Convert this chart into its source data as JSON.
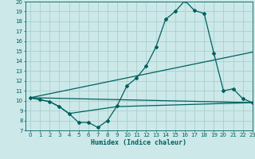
{
  "xlabel": "Humidex (Indice chaleur)",
  "xlim": [
    -0.5,
    23
  ],
  "ylim": [
    7,
    20
  ],
  "xticks": [
    0,
    1,
    2,
    3,
    4,
    5,
    6,
    7,
    8,
    9,
    10,
    11,
    12,
    13,
    14,
    15,
    16,
    17,
    18,
    19,
    20,
    21,
    22,
    23
  ],
  "yticks": [
    7,
    8,
    9,
    10,
    11,
    12,
    13,
    14,
    15,
    16,
    17,
    18,
    19,
    20
  ],
  "background_color": "#cce8e8",
  "line_color": "#006060",
  "grid_color": "#aad0d0",
  "series_main": {
    "x": [
      0,
      1,
      2,
      3,
      4,
      5,
      6,
      7,
      8,
      9,
      10,
      11,
      12,
      13,
      14,
      15,
      16,
      17,
      18,
      19,
      20,
      21,
      22,
      23
    ],
    "y": [
      10.3,
      10.1,
      9.9,
      9.4,
      8.7,
      7.8,
      7.8,
      7.3,
      8.0,
      9.5,
      11.5,
      12.3,
      13.5,
      15.4,
      18.2,
      19.0,
      20.1,
      19.1,
      18.8,
      14.8,
      11.0,
      11.2,
      10.2,
      9.8
    ]
  },
  "series_diag_upper": {
    "x": [
      0,
      23
    ],
    "y": [
      10.3,
      14.9
    ]
  },
  "series_diag_lower": {
    "x": [
      0,
      23
    ],
    "y": [
      10.3,
      9.8
    ]
  },
  "series_bottom": {
    "x": [
      0,
      1,
      2,
      3,
      4,
      9,
      23
    ],
    "y": [
      10.3,
      10.1,
      9.9,
      9.4,
      8.7,
      9.4,
      9.8
    ]
  }
}
